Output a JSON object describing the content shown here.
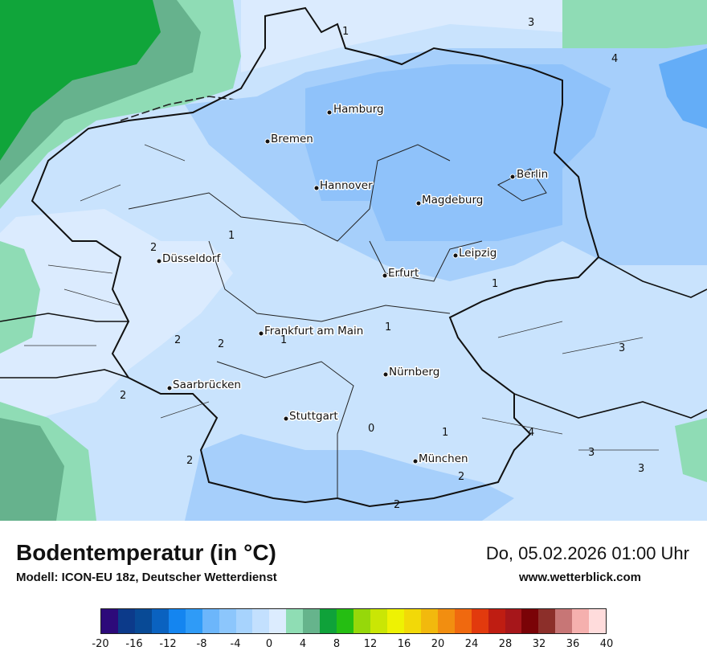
{
  "title": "Bodentemperatur (in °C)",
  "model": "Modell: ICON-EU 18z, Deutscher Wetterdienst",
  "datetime": "Do, 05.02.2026 01:00 Uhr",
  "website": "www.wetterblick.com",
  "cities": [
    {
      "name": "Hamburg"
    },
    {
      "name": "Bremen"
    },
    {
      "name": "Berlin"
    },
    {
      "name": "Hannover"
    },
    {
      "name": "Magdeburg"
    },
    {
      "name": "Düsseldorf"
    },
    {
      "name": "Leipzig"
    },
    {
      "name": "Erfurt"
    },
    {
      "name": "Frankfurt am Main"
    },
    {
      "name": "Nürnberg"
    },
    {
      "name": "Saarbrücken"
    },
    {
      "name": "Stuttgart"
    },
    {
      "name": "München"
    }
  ],
  "isoline_labels": [
    "1",
    "3",
    "4",
    "2",
    "1",
    "1",
    "2",
    "2",
    "1",
    "1",
    "3",
    "2",
    "0",
    "1",
    "4",
    "3",
    "2",
    "3",
    "2",
    "2"
  ],
  "colorbar": {
    "colors": [
      "#2d0a7a",
      "#0c3a8a",
      "#084a96",
      "#0a62c0",
      "#1485f0",
      "#2f9bf7",
      "#6cb6fb",
      "#8cc6fc",
      "#a7d3fd",
      "#c3e0fe",
      "#dcecfe",
      "#8fddb4",
      "#66b48c",
      "#0fa23a",
      "#25be12",
      "#96d80a",
      "#cae605",
      "#eef203",
      "#f2d908",
      "#f2b90d",
      "#f28e10",
      "#f0690f",
      "#e23a0d",
      "#bf1d12",
      "#a6161a",
      "#7a0307",
      "#8c2f2a",
      "#c77676",
      "#f5b0ae",
      "#ffdcdc"
    ],
    "ticks": [
      "-20",
      "-16",
      "-12",
      "-8",
      "-4",
      "0",
      "4",
      "8",
      "12",
      "16",
      "20",
      "24",
      "28",
      "32",
      "36",
      "40"
    ]
  },
  "colors": {
    "land_base": "#c6e1fd",
    "land_light": "#dbebfe",
    "cold_zone": "#a6cffb",
    "colder_zone": "#8fc2fa",
    "coldest_zone": "#64adf7",
    "mild_green": "#8fdcb5",
    "dark_green": "#66b28d",
    "bright_green": "#10a53a"
  }
}
